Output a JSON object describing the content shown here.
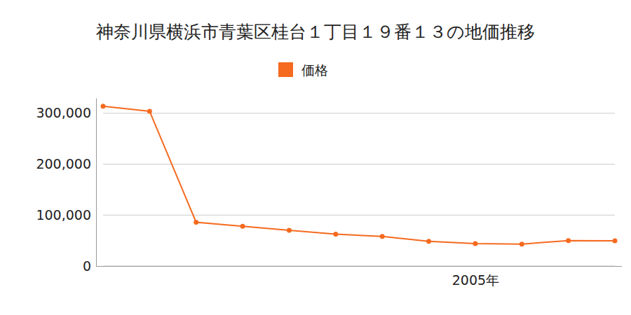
{
  "chart_data": {
    "type": "line",
    "title": "神奈川県横浜市青葉区桂台１丁目１９番１３の地価推移",
    "categories": [
      null,
      null,
      null,
      null,
      null,
      null,
      null,
      null,
      "2005年",
      null,
      null,
      null
    ],
    "series": [
      {
        "name": "価格",
        "color": "#f56a1f",
        "marker": "circle",
        "values": [
          314000,
          304000,
          86000,
          78000,
          70000,
          62500,
          58000,
          48600,
          44000,
          43000,
          50000,
          49500
        ]
      }
    ],
    "ylim": [
      0,
      330000
    ],
    "yticks": [
      0,
      {
        "value": 100000,
        "label": "100,000"
      },
      {
        "value": 200000,
        "label": "200,000"
      },
      {
        "value": 300000,
        "label": "300,000"
      }
    ],
    "grid": true,
    "legend": "top"
  }
}
